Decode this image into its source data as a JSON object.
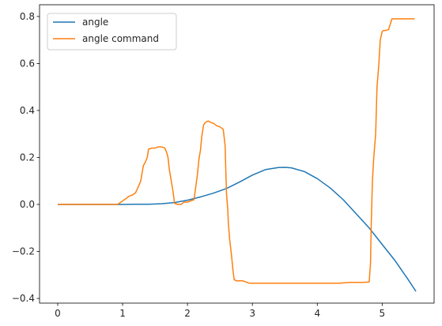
{
  "chart_data": {
    "type": "line",
    "title": "",
    "xlabel": "",
    "ylabel": "",
    "xlim": [
      -0.28,
      5.8
    ],
    "ylim": [
      -0.42,
      0.85
    ],
    "xticks": [
      0,
      1,
      2,
      3,
      4,
      5
    ],
    "yticks": [
      -0.4,
      -0.2,
      0.0,
      0.2,
      0.4,
      0.6,
      0.8
    ],
    "ytick_labels": [
      "−0.4",
      "−0.2",
      "0.0",
      "0.2",
      "0.4",
      "0.6",
      "0.8"
    ],
    "grid": false,
    "legend_position": "top-left",
    "series": [
      {
        "name": "angle",
        "color": "#1f77b4",
        "x": [
          0,
          0.5,
          1.0,
          1.2,
          1.4,
          1.6,
          1.8,
          2.0,
          2.2,
          2.4,
          2.6,
          2.8,
          3.0,
          3.2,
          3.4,
          3.5,
          3.6,
          3.8,
          4.0,
          4.2,
          4.4,
          4.6,
          4.8,
          5.0,
          5.2,
          5.4,
          5.52
        ],
        "y": [
          0,
          0,
          0,
          0.0005,
          0.001,
          0.003,
          0.008,
          0.018,
          0.032,
          0.048,
          0.068,
          0.095,
          0.125,
          0.148,
          0.157,
          0.158,
          0.156,
          0.14,
          0.11,
          0.07,
          0.02,
          -0.04,
          -0.1,
          -0.17,
          -0.24,
          -0.32,
          -0.37
        ]
      },
      {
        "name": "angle command",
        "color": "#ff7f0e",
        "x": [
          0,
          0.92,
          0.95,
          1.0,
          1.05,
          1.1,
          1.15,
          1.2,
          1.25,
          1.28,
          1.32,
          1.35,
          1.38,
          1.4,
          1.45,
          1.5,
          1.55,
          1.6,
          1.65,
          1.68,
          1.7,
          1.72,
          1.75,
          1.78,
          1.8,
          1.85,
          1.9,
          1.95,
          2.0,
          2.05,
          2.1,
          2.12,
          2.15,
          2.18,
          2.2,
          2.22,
          2.25,
          2.28,
          2.32,
          2.35,
          2.4,
          2.45,
          2.5,
          2.55,
          2.58,
          2.6,
          2.62,
          2.63,
          2.65,
          2.68,
          2.7,
          2.72,
          2.75,
          2.8,
          2.85,
          2.9,
          2.95,
          3.0,
          3.2,
          3.5,
          3.8,
          4.0,
          4.2,
          4.35,
          4.5,
          4.6,
          4.7,
          4.8,
          4.82,
          4.83,
          4.85,
          4.87,
          4.9,
          4.92,
          4.95,
          4.97,
          5.0,
          5.02,
          5.05,
          5.1,
          5.15,
          5.2,
          5.5
        ],
        "y": [
          0,
          0,
          0.005,
          0.015,
          0.025,
          0.035,
          0.04,
          0.05,
          0.08,
          0.1,
          0.165,
          0.18,
          0.2,
          0.235,
          0.24,
          0.24,
          0.245,
          0.245,
          0.24,
          0.22,
          0.2,
          0.15,
          0.1,
          0.05,
          0.005,
          0.0,
          0.0,
          0.01,
          0.01,
          0.015,
          0.02,
          0.06,
          0.12,
          0.2,
          0.23,
          0.29,
          0.34,
          0.35,
          0.355,
          0.35,
          0.345,
          0.335,
          0.33,
          0.32,
          0.25,
          0.05,
          -0.02,
          -0.08,
          -0.15,
          -0.22,
          -0.28,
          -0.32,
          -0.325,
          -0.325,
          -0.325,
          -0.33,
          -0.335,
          -0.335,
          -0.335,
          -0.335,
          -0.335,
          -0.335,
          -0.335,
          -0.335,
          -0.332,
          -0.332,
          -0.332,
          -0.33,
          -0.25,
          -0.1,
          0.1,
          0.2,
          0.3,
          0.5,
          0.6,
          0.7,
          0.735,
          0.74,
          0.74,
          0.745,
          0.79,
          0.79,
          0.79
        ]
      }
    ]
  }
}
